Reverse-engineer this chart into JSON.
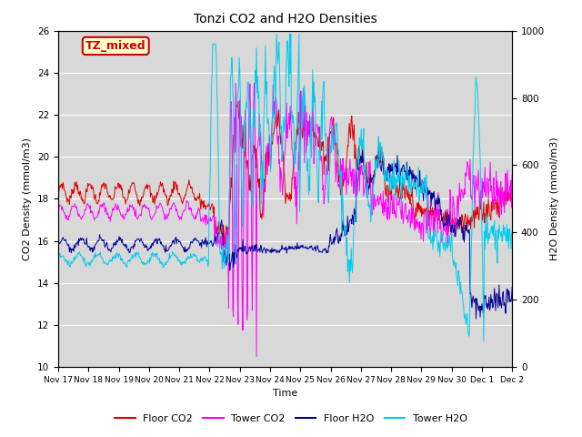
{
  "title": "Tonzi CO2 and H2O Densities",
  "xlabel": "Time",
  "ylabel_left": "CO2 Density (mmol/m3)",
  "ylabel_right": "H2O Density (mmol/m3)",
  "ylim_left": [
    10,
    26
  ],
  "ylim_right": [
    0,
    1000
  ],
  "yticks_left": [
    10,
    12,
    14,
    16,
    18,
    20,
    22,
    24,
    26
  ],
  "yticks_right": [
    0,
    200,
    400,
    600,
    800,
    1000
  ],
  "xtick_labels": [
    "Nov 17",
    "Nov 18",
    "Nov 19",
    "Nov 20",
    "Nov 21",
    "Nov 22",
    "Nov 23",
    "Nov 24",
    "Nov 25",
    "Nov 26",
    "Nov 27",
    "Nov 28",
    "Nov 29",
    "Nov 30",
    "Dec 1",
    "Dec 2"
  ],
  "annotation_text": "TZ_mixed",
  "annotation_bg": "#ffffcc",
  "annotation_border": "#cc0000",
  "annotation_text_color": "#cc0000",
  "line_colors": {
    "floor_co2": "#dd0000",
    "tower_co2": "#ff00ff",
    "floor_h2o": "#000099",
    "tower_h2o": "#00ccee"
  },
  "legend_labels": [
    "Floor CO2",
    "Tower CO2",
    "Floor H2O",
    "Tower H2O"
  ],
  "plot_bg": "#d8d8d8"
}
